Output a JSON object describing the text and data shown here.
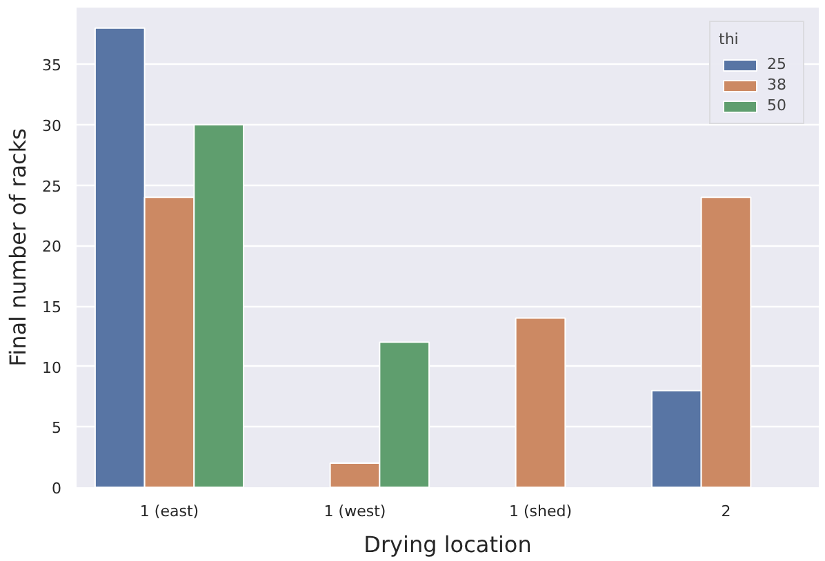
{
  "chart_data": {
    "type": "bar",
    "xlabel": "Drying location",
    "ylabel": "Final number of racks",
    "legend_title": "thi",
    "categories": [
      "1 (east)",
      "1 (west)",
      "1 (shed)",
      "2"
    ],
    "series": [
      {
        "name": "25",
        "color": "#5875a4",
        "values": [
          38,
          null,
          null,
          8
        ]
      },
      {
        "name": "38",
        "color": "#cc8963",
        "values": [
          24,
          2,
          14,
          24
        ]
      },
      {
        "name": "50",
        "color": "#5f9e6e",
        "values": [
          30,
          12,
          null,
          null
        ]
      }
    ],
    "ylim": [
      0,
      39.7
    ],
    "yticks": [
      0,
      5,
      10,
      15,
      20,
      25,
      30,
      35
    ],
    "grid": "y",
    "legend": "top right"
  }
}
